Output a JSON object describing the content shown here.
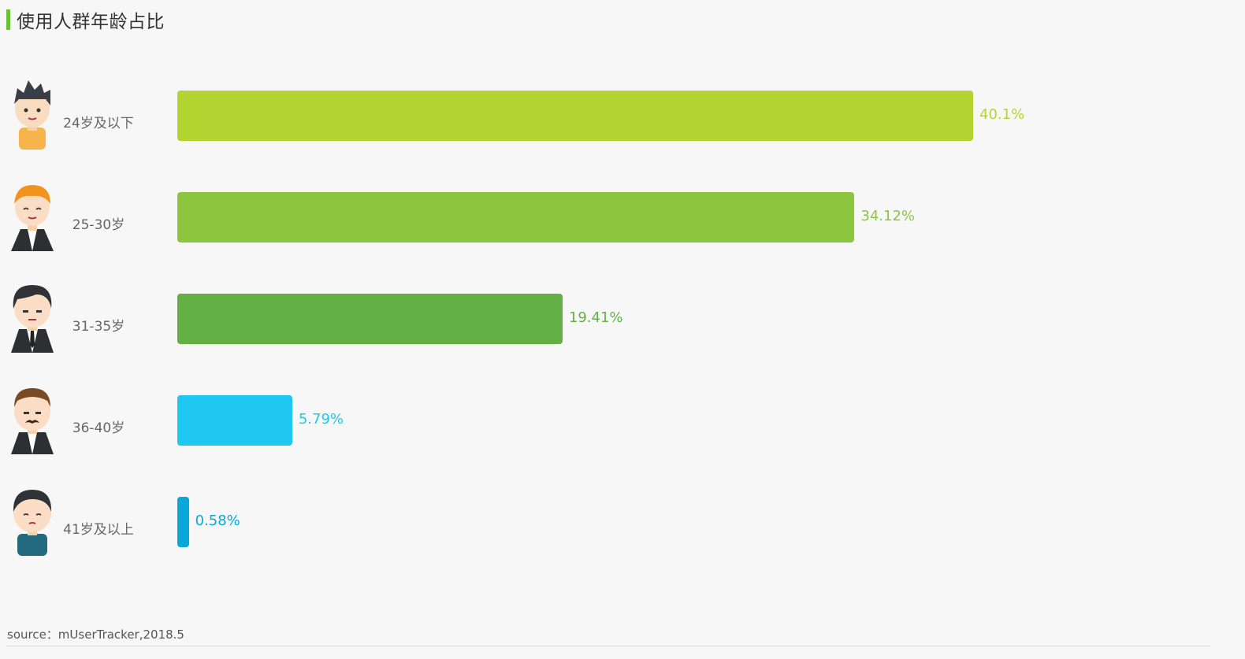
{
  "chart_data": {
    "type": "bar",
    "orientation": "horizontal",
    "title": "使用人群年龄占比",
    "categories": [
      "24岁及以下",
      "25-30岁",
      "31-35岁",
      "36-40岁",
      "41岁及以上"
    ],
    "values": [
      40.1,
      34.12,
      19.41,
      5.79,
      0.58
    ],
    "value_labels": [
      "40.1%",
      "34.12%",
      "19.41%",
      "5.79%",
      "0.58%"
    ],
    "colors": [
      "#b4d432",
      "#8cc63f",
      "#65b045",
      "#1ec8f0",
      "#0aa8d8"
    ],
    "icons": [
      "young-boy-icon",
      "redhair-man-icon",
      "suit-man-icon",
      "mustache-man-icon",
      "older-man-icon"
    ],
    "xlim": [
      0,
      40.1
    ],
    "grid": false,
    "legend": "none"
  },
  "source": "source：mUserTracker,2018.5"
}
